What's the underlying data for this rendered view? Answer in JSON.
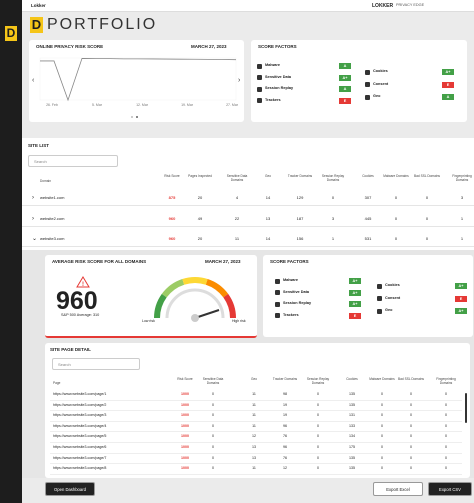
{
  "window_title": "Lokker",
  "brand": "LOKKER",
  "brand_sub": "PRIVACY EDGE",
  "logo_letter": "D",
  "page_title": "PORTFOLIO",
  "risk_card": {
    "title": "ONLINE PRIVACY RISK SCORE",
    "date": "MARCH 27, 2023"
  },
  "risk_chart": {
    "type": "line",
    "x_labels": [
      "26. Feb",
      "5. Mar",
      "12. Mar",
      "19. Mar",
      "27. Mar"
    ],
    "values": [
      930,
      930,
      0,
      990,
      985,
      985,
      980,
      980,
      978,
      975,
      972,
      970,
      968,
      965,
      960
    ],
    "ylim": [
      0,
      1000
    ],
    "color": "#888888"
  },
  "score_factors": {
    "title": "SCORE FACTORS",
    "items": [
      {
        "name": "Malware",
        "grade": "A"
      },
      {
        "name": "Sensitive Data",
        "grade": "A+"
      },
      {
        "name": "Session Replay",
        "grade": "A"
      },
      {
        "name": "Trackers",
        "grade": "E"
      },
      {
        "name": "Cookies",
        "grade": "A+"
      },
      {
        "name": "Consent",
        "grade": "E"
      },
      {
        "name": "Geo",
        "grade": "A"
      }
    ]
  },
  "site_list": {
    "title": "SITE LIST",
    "search": "Search",
    "columns": [
      "Domain",
      "Risk Score",
      "Pages Inspected",
      "Sensitive Data Domains",
      "Geo",
      "Tracker Domains",
      "Session Replay Domains",
      "Cookies",
      "Malware Domains",
      "Bad SSL Domains",
      "Fingerprinting Domains"
    ],
    "rows": [
      [
        "website1.com",
        875,
        20,
        4,
        14,
        129,
        0,
        307,
        0,
        0,
        3
      ],
      [
        "website2.com",
        960,
        49,
        22,
        13,
        187,
        3,
        445,
        0,
        0,
        1
      ],
      [
        "website3.com",
        960,
        20,
        11,
        14,
        156,
        1,
        531,
        0,
        0,
        1
      ]
    ]
  },
  "average": {
    "title": "AVERAGE RISK SCORE FOR ALL DOMAINS",
    "date": "MARCH 27, 2023",
    "score": 960,
    "benchmark": "S&P 500 Average: 310",
    "low": "Low risk",
    "high": "High risk"
  },
  "avg_factors": {
    "title": "SCORE FACTORS",
    "items": [
      {
        "name": "Malware",
        "grade": "A+"
      },
      {
        "name": "Sensitive Data",
        "grade": "A+"
      },
      {
        "name": "Session Replay",
        "grade": "A+"
      },
      {
        "name": "Trackers",
        "grade": "E"
      },
      {
        "name": "Cookies",
        "grade": "A+"
      },
      {
        "name": "Consent",
        "grade": "E"
      },
      {
        "name": "Geo",
        "grade": "A+"
      }
    ]
  },
  "page_detail": {
    "title": "SITE PAGE DETAIL",
    "search": "Search",
    "columns": [
      "Page",
      "Risk Score",
      "Sensitive Data Domains",
      "Geo",
      "Tracker Domains",
      "Session Replay Domains",
      "Cookies",
      "Malware Domains",
      "Bad SSL Domains",
      "Fingerprinting Domains"
    ],
    "rows": [
      [
        "https://www.website3.com/page/1",
        1000,
        0,
        11,
        98,
        0,
        135,
        0,
        0,
        0
      ],
      [
        "https://www.website3.com/page/2",
        1000,
        0,
        11,
        19,
        0,
        135,
        0,
        0,
        0
      ],
      [
        "https://www.website3.com/page/3",
        1000,
        0,
        11,
        19,
        0,
        131,
        0,
        0,
        0
      ],
      [
        "https://www.website3.com/page/4",
        1000,
        0,
        11,
        96,
        0,
        133,
        0,
        0,
        0
      ],
      [
        "https://www.website3.com/page/5",
        1000,
        0,
        12,
        76,
        0,
        134,
        0,
        0,
        0
      ],
      [
        "https://www.website3.com/page/6",
        1000,
        0,
        13,
        96,
        0,
        175,
        0,
        0,
        0
      ],
      [
        "https://www.website3.com/page/7",
        1000,
        0,
        13,
        76,
        0,
        135,
        0,
        0,
        0
      ],
      [
        "https://www.website3.com/page/8",
        1000,
        0,
        11,
        12,
        0,
        135,
        0,
        0,
        0
      ]
    ]
  },
  "buttons": [
    "Open Dashboard",
    "Export Excel",
    "Export CSV"
  ]
}
